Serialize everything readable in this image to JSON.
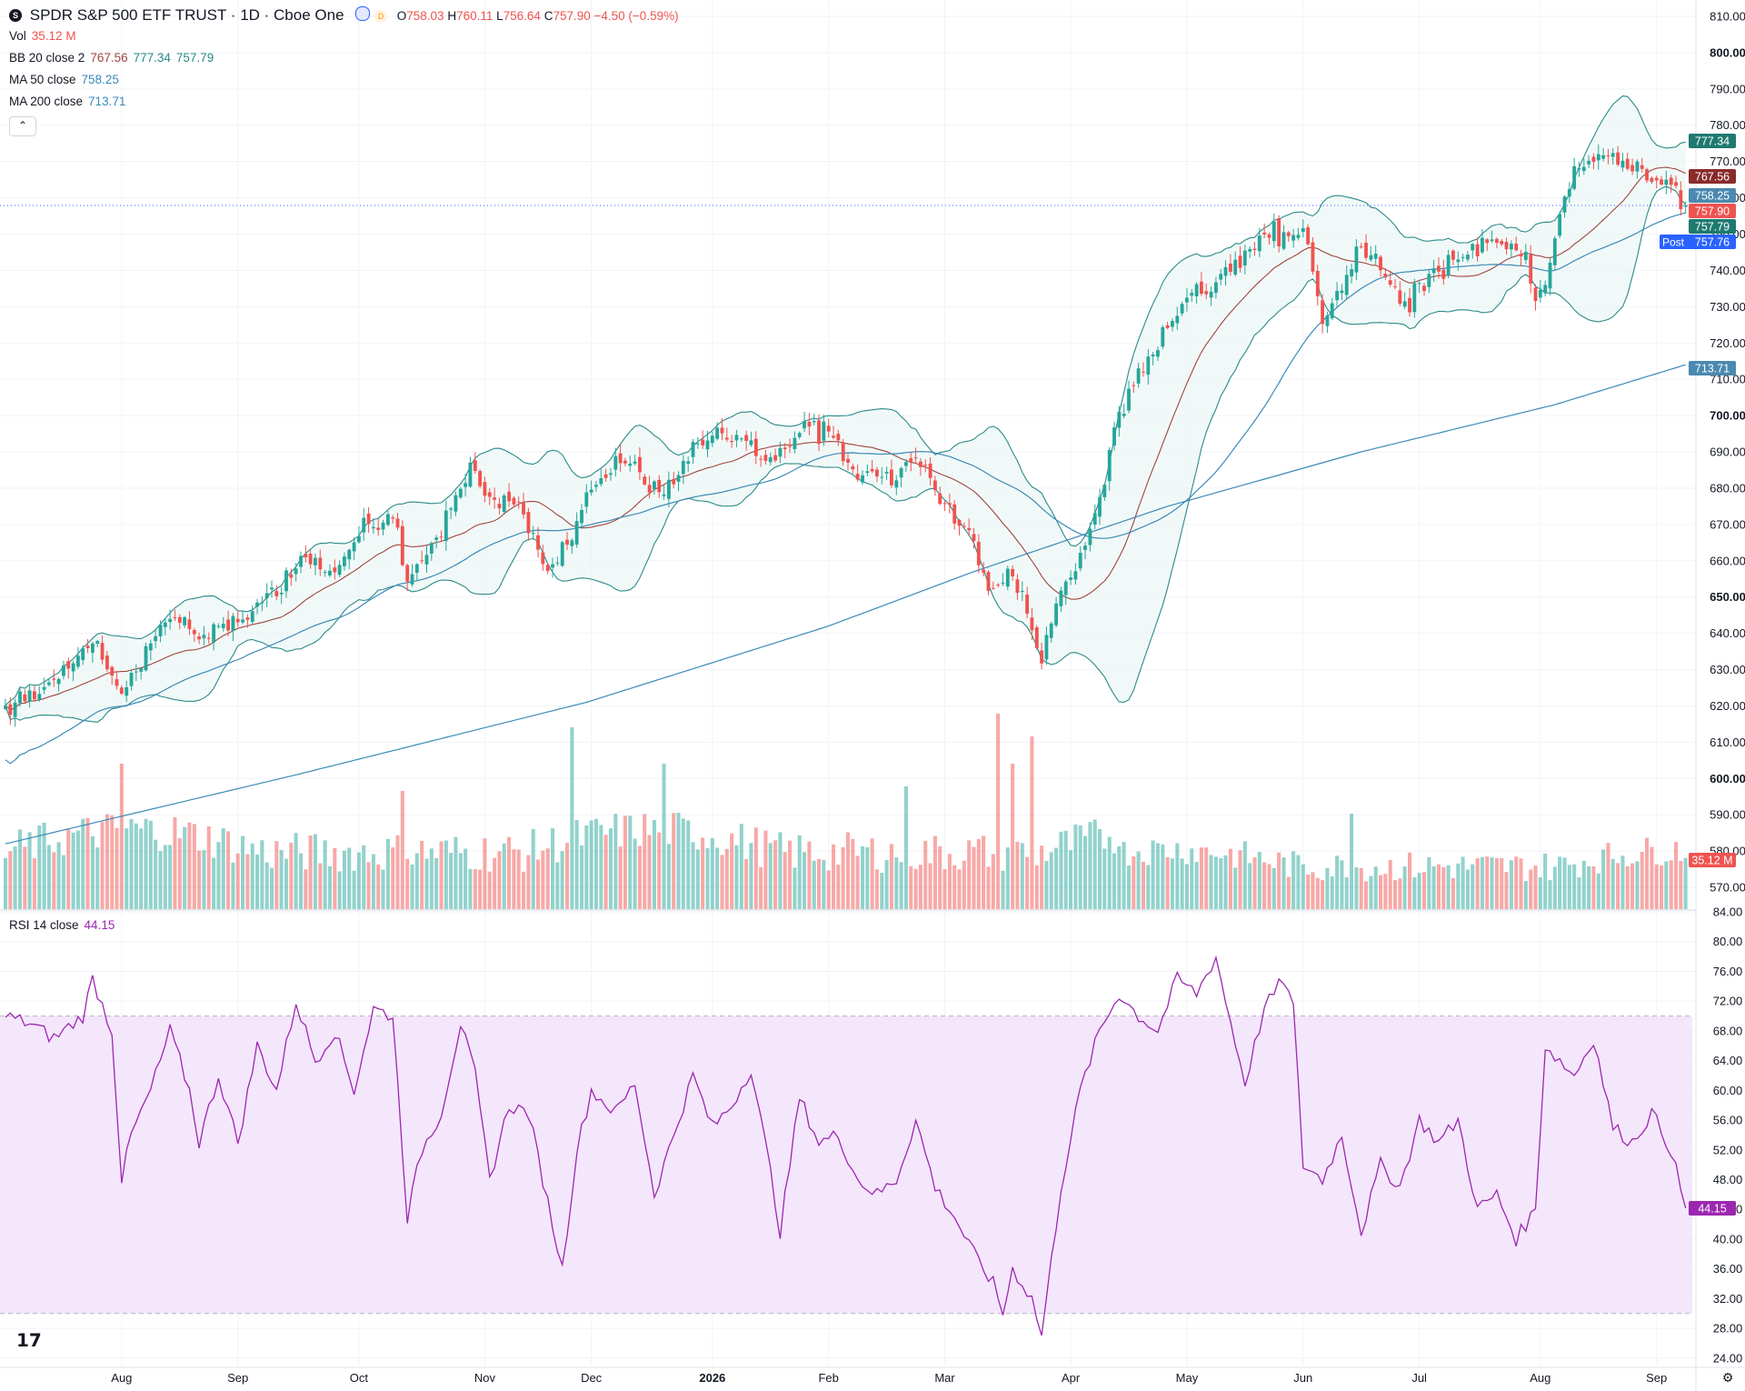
{
  "header": {
    "symbol_badge": "S",
    "title": "SPDR S&P 500 ETF TRUST · 1D · Cboe One",
    "ohlc": {
      "o_label": "O",
      "o": "758.03",
      "h_label": "H",
      "h": "760.11",
      "l_label": "L",
      "l": "756.64",
      "c_label": "C",
      "c": "757.90",
      "change": "−4.50 (−0.59%)"
    }
  },
  "legends": {
    "vol_label": "Vol",
    "vol_value": "35.12 M",
    "bb_label": "BB 20 close 2",
    "bb_basis": "767.56",
    "bb_upper": "777.34",
    "bb_lower": "757.79",
    "ma50_label": "MA 50 close",
    "ma50_value": "758.25",
    "ma200_label": "MA 200 close",
    "ma200_value": "713.71",
    "rsi_label": "RSI 14 close",
    "rsi_value": "44.15",
    "collapse_glyph": "⌃"
  },
  "badges": {
    "upper": "777.34",
    "basis": "767.56",
    "ma50": "758.25",
    "last": "757.90",
    "lower": "757.79",
    "post_label": "Post",
    "post": "757.76",
    "ma200": "713.71",
    "vol": "35.12 M",
    "rsi": "44.15"
  },
  "colors": {
    "up": "#26a69a",
    "down": "#ef5350",
    "bb_band": "#2b8a8a",
    "bb_basis": "#a0463f",
    "ma50": "#3b8ab8",
    "ma200": "#3b8ab8",
    "rsi": "#9c27b0",
    "rsi_fill": "#f4e6fb",
    "badge_upper": "#1e7a6f",
    "badge_basis": "#8a2b2b",
    "badge_ma50": "#4a89b0",
    "badge_last": "#ef5350",
    "badge_lower": "#1e7a6f",
    "badge_post": "#2962ff",
    "badge_ma200": "#4a89b0",
    "badge_vol": "#ef5350",
    "badge_rsi": "#9c27b0"
  },
  "chart_data": {
    "type": "candlestick",
    "price_axis": {
      "min": 564,
      "max": 812,
      "ticks": [
        "810.00",
        "800.00",
        "790.00",
        "780.00",
        "770.00",
        "760.00",
        "750.00",
        "740.00",
        "730.00",
        "720.00",
        "710.00",
        "700.00",
        "690.00",
        "680.00",
        "670.00",
        "660.00",
        "650.00",
        "640.00",
        "630.00",
        "620.00",
        "610.00",
        "600.00",
        "590.00",
        "580.00",
        "570.00"
      ],
      "bold_ticks": [
        "800.00",
        "700.00",
        "650.00",
        "600.00"
      ]
    },
    "rsi_axis": {
      "min": 23,
      "max": 84,
      "ticks": [
        "84.00",
        "80.00",
        "76.00",
        "72.00",
        "68.00",
        "64.00",
        "60.00",
        "56.00",
        "52.00",
        "48.00",
        "44.00",
        "40.00",
        "36.00",
        "32.00",
        "28.00",
        "24.00"
      ],
      "upper_band": 70,
      "lower_band": 30
    },
    "time_axis": {
      "labels": [
        "Aug",
        "Sep",
        "Oct",
        "Nov",
        "Dec",
        "2026",
        "Feb",
        "Mar",
        "Apr",
        "May",
        "Jun",
        "Jul",
        "Aug",
        "Sep"
      ],
      "bold": [
        "2026"
      ],
      "bar_index": [
        24,
        48,
        73,
        99,
        121,
        146,
        170,
        194,
        220,
        244,
        268,
        292,
        317,
        341
      ]
    },
    "bars_count": 348,
    "price_anchors": [
      [
        0,
        620
      ],
      [
        6,
        623
      ],
      [
        14,
        632
      ],
      [
        18,
        638
      ],
      [
        24,
        624
      ],
      [
        28,
        633
      ],
      [
        34,
        645
      ],
      [
        40,
        640
      ],
      [
        48,
        642
      ],
      [
        55,
        652
      ],
      [
        62,
        662
      ],
      [
        68,
        657
      ],
      [
        75,
        670
      ],
      [
        80,
        672
      ],
      [
        83,
        653
      ],
      [
        90,
        668
      ],
      [
        96,
        686
      ],
      [
        99,
        678
      ],
      [
        106,
        676
      ],
      [
        112,
        658
      ],
      [
        116,
        664
      ],
      [
        120,
        680
      ],
      [
        128,
        687
      ],
      [
        136,
        677
      ],
      [
        142,
        692
      ],
      [
        150,
        695
      ],
      [
        158,
        687
      ],
      [
        164,
        697
      ],
      [
        170,
        695
      ],
      [
        176,
        683
      ],
      [
        184,
        683
      ],
      [
        188,
        688
      ],
      [
        193,
        678
      ],
      [
        198,
        669
      ],
      [
        204,
        652
      ],
      [
        208,
        655
      ],
      [
        214,
        634
      ],
      [
        218,
        652
      ],
      [
        222,
        660
      ],
      [
        226,
        678
      ],
      [
        230,
        702
      ],
      [
        236,
        716
      ],
      [
        242,
        730
      ],
      [
        248,
        735
      ],
      [
        254,
        742
      ],
      [
        262,
        750
      ],
      [
        268,
        752
      ],
      [
        272,
        728
      ],
      [
        276,
        735
      ],
      [
        280,
        748
      ],
      [
        284,
        740
      ],
      [
        288,
        730
      ],
      [
        294,
        738
      ],
      [
        300,
        743
      ],
      [
        306,
        748
      ],
      [
        314,
        745
      ],
      [
        316,
        730
      ],
      [
        320,
        750
      ],
      [
        324,
        769
      ],
      [
        330,
        770
      ],
      [
        336,
        770
      ],
      [
        341,
        765
      ],
      [
        344,
        763
      ],
      [
        347,
        758
      ]
    ],
    "ma200_anchors": [
      [
        0,
        582
      ],
      [
        60,
        601
      ],
      [
        120,
        621
      ],
      [
        170,
        642
      ],
      [
        200,
        657
      ],
      [
        240,
        675
      ],
      [
        280,
        690
      ],
      [
        320,
        703
      ],
      [
        347,
        714
      ]
    ],
    "rsi_anchors": [
      [
        0,
        70
      ],
      [
        5,
        69
      ],
      [
        10,
        67
      ],
      [
        16,
        70
      ],
      [
        18,
        75
      ],
      [
        22,
        68
      ],
      [
        24,
        48
      ],
      [
        26,
        54
      ],
      [
        30,
        60
      ],
      [
        34,
        68
      ],
      [
        38,
        60
      ],
      [
        40,
        53
      ],
      [
        44,
        62
      ],
      [
        48,
        53
      ],
      [
        52,
        66
      ],
      [
        56,
        60
      ],
      [
        60,
        72
      ],
      [
        64,
        64
      ],
      [
        68,
        68
      ],
      [
        72,
        60
      ],
      [
        76,
        71
      ],
      [
        80,
        70
      ],
      [
        83,
        43
      ],
      [
        86,
        52
      ],
      [
        90,
        57
      ],
      [
        94,
        69
      ],
      [
        97,
        62
      ],
      [
        100,
        48
      ],
      [
        104,
        58
      ],
      [
        108,
        57
      ],
      [
        112,
        45
      ],
      [
        115,
        36
      ],
      [
        118,
        52
      ],
      [
        121,
        60
      ],
      [
        126,
        57
      ],
      [
        130,
        61
      ],
      [
        134,
        46
      ],
      [
        138,
        54
      ],
      [
        142,
        62
      ],
      [
        146,
        55
      ],
      [
        150,
        58
      ],
      [
        154,
        63
      ],
      [
        158,
        49
      ],
      [
        160,
        41
      ],
      [
        164,
        59
      ],
      [
        168,
        53
      ],
      [
        172,
        54
      ],
      [
        176,
        48
      ],
      [
        180,
        46
      ],
      [
        184,
        48
      ],
      [
        188,
        56
      ],
      [
        192,
        47
      ],
      [
        196,
        43
      ],
      [
        200,
        38
      ],
      [
        204,
        34
      ],
      [
        206,
        30
      ],
      [
        208,
        36
      ],
      [
        212,
        32
      ],
      [
        214,
        27
      ],
      [
        218,
        47
      ],
      [
        222,
        60
      ],
      [
        226,
        68
      ],
      [
        230,
        73
      ],
      [
        234,
        70
      ],
      [
        238,
        68
      ],
      [
        242,
        75
      ],
      [
        246,
        73
      ],
      [
        250,
        78
      ],
      [
        252,
        72
      ],
      [
        256,
        61
      ],
      [
        260,
        71
      ],
      [
        264,
        75
      ],
      [
        266,
        71
      ],
      [
        268,
        50
      ],
      [
        272,
        48
      ],
      [
        276,
        54
      ],
      [
        280,
        41
      ],
      [
        284,
        50
      ],
      [
        288,
        47
      ],
      [
        292,
        56
      ],
      [
        296,
        53
      ],
      [
        300,
        56
      ],
      [
        304,
        44
      ],
      [
        308,
        46
      ],
      [
        312,
        40
      ],
      [
        316,
        44
      ],
      [
        318,
        66
      ],
      [
        324,
        62
      ],
      [
        328,
        67
      ],
      [
        332,
        55
      ],
      [
        336,
        53
      ],
      [
        340,
        57
      ],
      [
        344,
        52
      ],
      [
        347,
        44
      ]
    ],
    "volume_profile": {
      "min": 0,
      "max": 1,
      "note_units": "relative"
    },
    "last_price": 757.9
  }
}
